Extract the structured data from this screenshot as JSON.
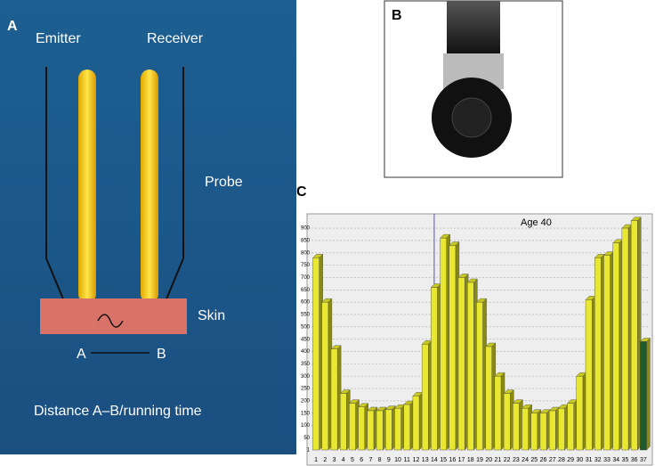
{
  "panel_a": {
    "letter": "A",
    "emitter": "Emitter",
    "receiver": "Receiver",
    "probe": "Probe",
    "skin": "Skin",
    "point_a": "A",
    "point_b": "B",
    "caption": "Distance A–B/running time"
  },
  "panel_b": {
    "letter": "B"
  },
  "panel_c": {
    "letter": "C"
  },
  "chart_data": {
    "type": "bar",
    "annotation": "Age 40",
    "vline": "14",
    "categories": [
      "1",
      "2",
      "3",
      "4",
      "5",
      "6",
      "7",
      "8",
      "9",
      "10",
      "11",
      "12",
      "13",
      "14",
      "15",
      "16",
      "17",
      "18",
      "19",
      "20",
      "21",
      "22",
      "23",
      "24",
      "25",
      "26",
      "27",
      "28",
      "29",
      "30",
      "31",
      "32",
      "33",
      "34",
      "35",
      "36",
      "37"
    ],
    "values": [
      780,
      600,
      410,
      230,
      190,
      175,
      160,
      160,
      165,
      170,
      185,
      220,
      430,
      660,
      860,
      830,
      700,
      680,
      600,
      420,
      300,
      230,
      190,
      170,
      150,
      150,
      160,
      170,
      190,
      300,
      610,
      780,
      790,
      840,
      900,
      930,
      440
    ],
    "colors": [
      "#e8e832",
      "#e8e832",
      "#e8e832",
      "#e8e832",
      "#e8e832",
      "#e8e832",
      "#e8e832",
      "#e8e832",
      "#e8e832",
      "#e8e832",
      "#e8e832",
      "#e8e832",
      "#e8e832",
      "#e8e832",
      "#e8e832",
      "#e8e832",
      "#e8e832",
      "#e8e832",
      "#e8e832",
      "#e8e832",
      "#e8e832",
      "#e8e832",
      "#e8e832",
      "#e8e832",
      "#e8e832",
      "#e8e832",
      "#e8e832",
      "#e8e832",
      "#e8e832",
      "#e8e832",
      "#e8e832",
      "#e8e832",
      "#e8e832",
      "#e8e832",
      "#e8e832",
      "#e8e832",
      "#1d5a2c"
    ],
    "ylim": [
      1,
      940
    ],
    "yticks": [
      1,
      50,
      100,
      150,
      200,
      250,
      300,
      350,
      400,
      450,
      500,
      550,
      600,
      650,
      700,
      750,
      800,
      850,
      900
    ],
    "grid": true
  }
}
